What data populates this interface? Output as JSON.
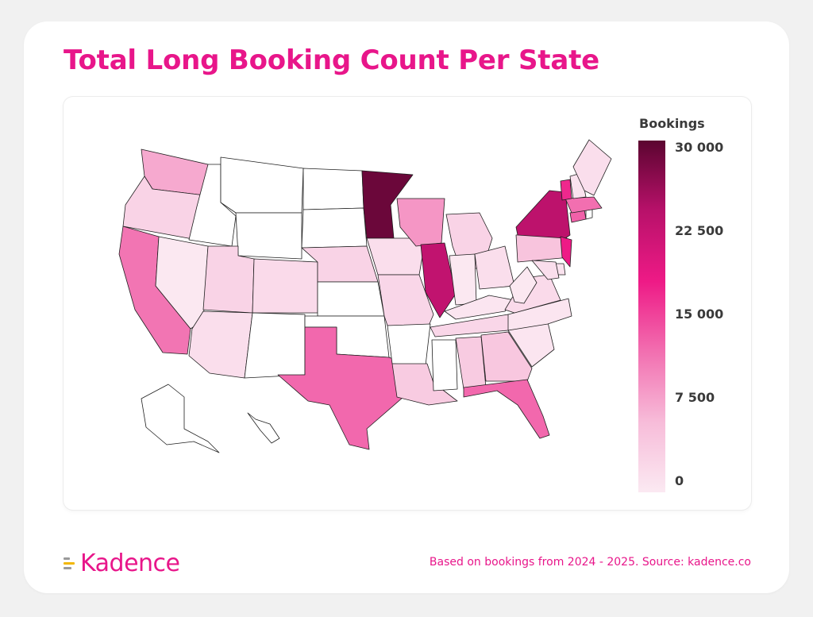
{
  "title": "Total Long Booking Count Per State",
  "legend": {
    "title": "Bookings",
    "ticks": [
      "30 000",
      "22 500",
      "15 000",
      "7 500",
      "0"
    ],
    "range": [
      0,
      30000
    ],
    "colors": [
      "#fbe9f2",
      "#f7bcd9",
      "#f26fb0",
      "#ee1a86",
      "#b8116a",
      "#5b0530"
    ]
  },
  "chart_data": {
    "type": "heatmap",
    "map": "USA choropleth by state",
    "legend_title": "Bookings",
    "color_range": [
      0,
      30000
    ],
    "values": {
      "MN": 29000,
      "NY": 23500,
      "IL": 23000,
      "NJ": 18000,
      "VT": 17000,
      "TX": 12500,
      "FL": 12500,
      "CA": 11500,
      "MA": 12000,
      "CT": 13000,
      "WI": 9000,
      "WA": 7500,
      "PA": 5000,
      "GA": 4500,
      "AL": 4000,
      "LA": 4000,
      "OR": 3000,
      "UT": 3000,
      "NE": 3000,
      "MI": 3000,
      "TN": 2500,
      "MO": 2500,
      "VA": 2000,
      "CO": 2000,
      "AZ": 1500,
      "IA": 1500,
      "OH": 1500,
      "ME": 1500,
      "NH": 1000,
      "MD": 1500,
      "DE": 1000,
      "SC": 500,
      "NC": 500,
      "KY": 500,
      "IN": 200,
      "WV": 200,
      "NV": 200,
      "ID": 0,
      "MT": 0,
      "WY": 0,
      "ND": 0,
      "SD": 0,
      "NM": 0,
      "OK": 0,
      "KS": 0,
      "AR": 0,
      "MS": 0,
      "AK": 0,
      "HI": 0,
      "RI": 0
    }
  },
  "footer": {
    "logo": "Kadence",
    "source": "Based on bookings from 2024 - 2025. Source: kadence.co"
  }
}
